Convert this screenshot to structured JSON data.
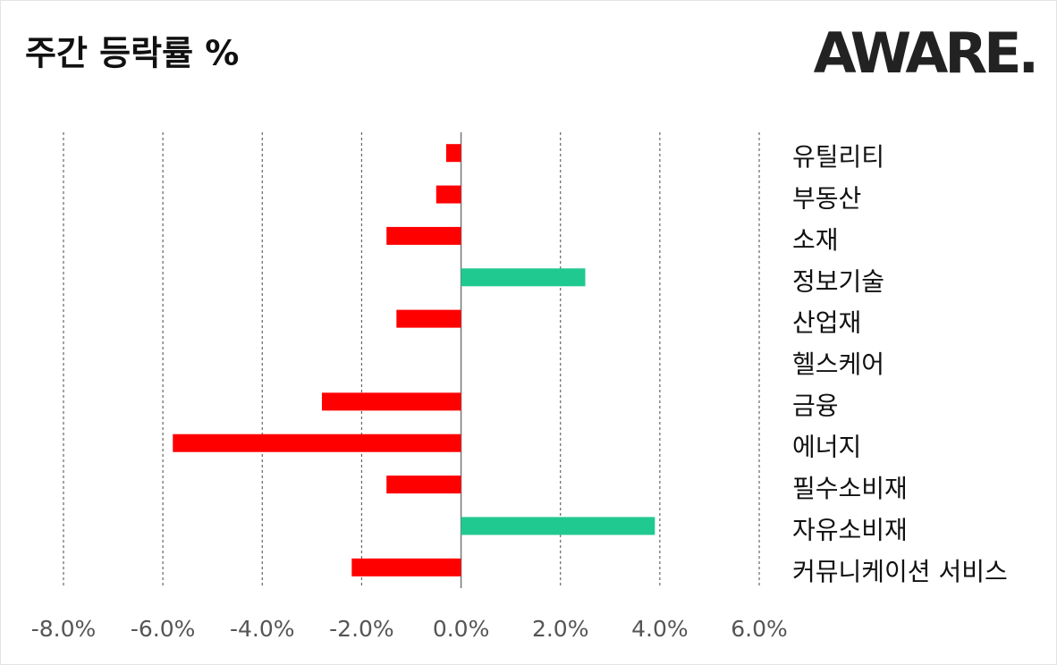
{
  "chart_data": {
    "type": "hbar",
    "title": "주간 등락률 %",
    "logo": "AWARE.",
    "categories": [
      "유틸리티",
      "부동산",
      "소재",
      "정보기술",
      "산업재",
      "헬스케어",
      "금융",
      "에너지",
      "필수소비재",
      "자유소비재",
      "커뮤니케이션 서비스"
    ],
    "values": [
      -0.3,
      -0.5,
      -1.5,
      2.5,
      -1.3,
      0,
      -2.8,
      -5.8,
      -1.5,
      3.9,
      -2.2
    ],
    "positive_color": "#20c990",
    "negative_color": "#ff0000",
    "xlim": [
      -8,
      6
    ],
    "xticks": [
      {
        "value": -8,
        "label": "-8.0%"
      },
      {
        "value": -6,
        "label": "-6.0%"
      },
      {
        "value": -4,
        "label": "-4.0%"
      },
      {
        "value": -2,
        "label": "-2.0%"
      },
      {
        "value": 0,
        "label": "0.0%"
      },
      {
        "value": 2,
        "label": "2.0%"
      },
      {
        "value": 4,
        "label": "4.0%"
      },
      {
        "value": 6,
        "label": "6.0%"
      }
    ],
    "grid": true
  }
}
